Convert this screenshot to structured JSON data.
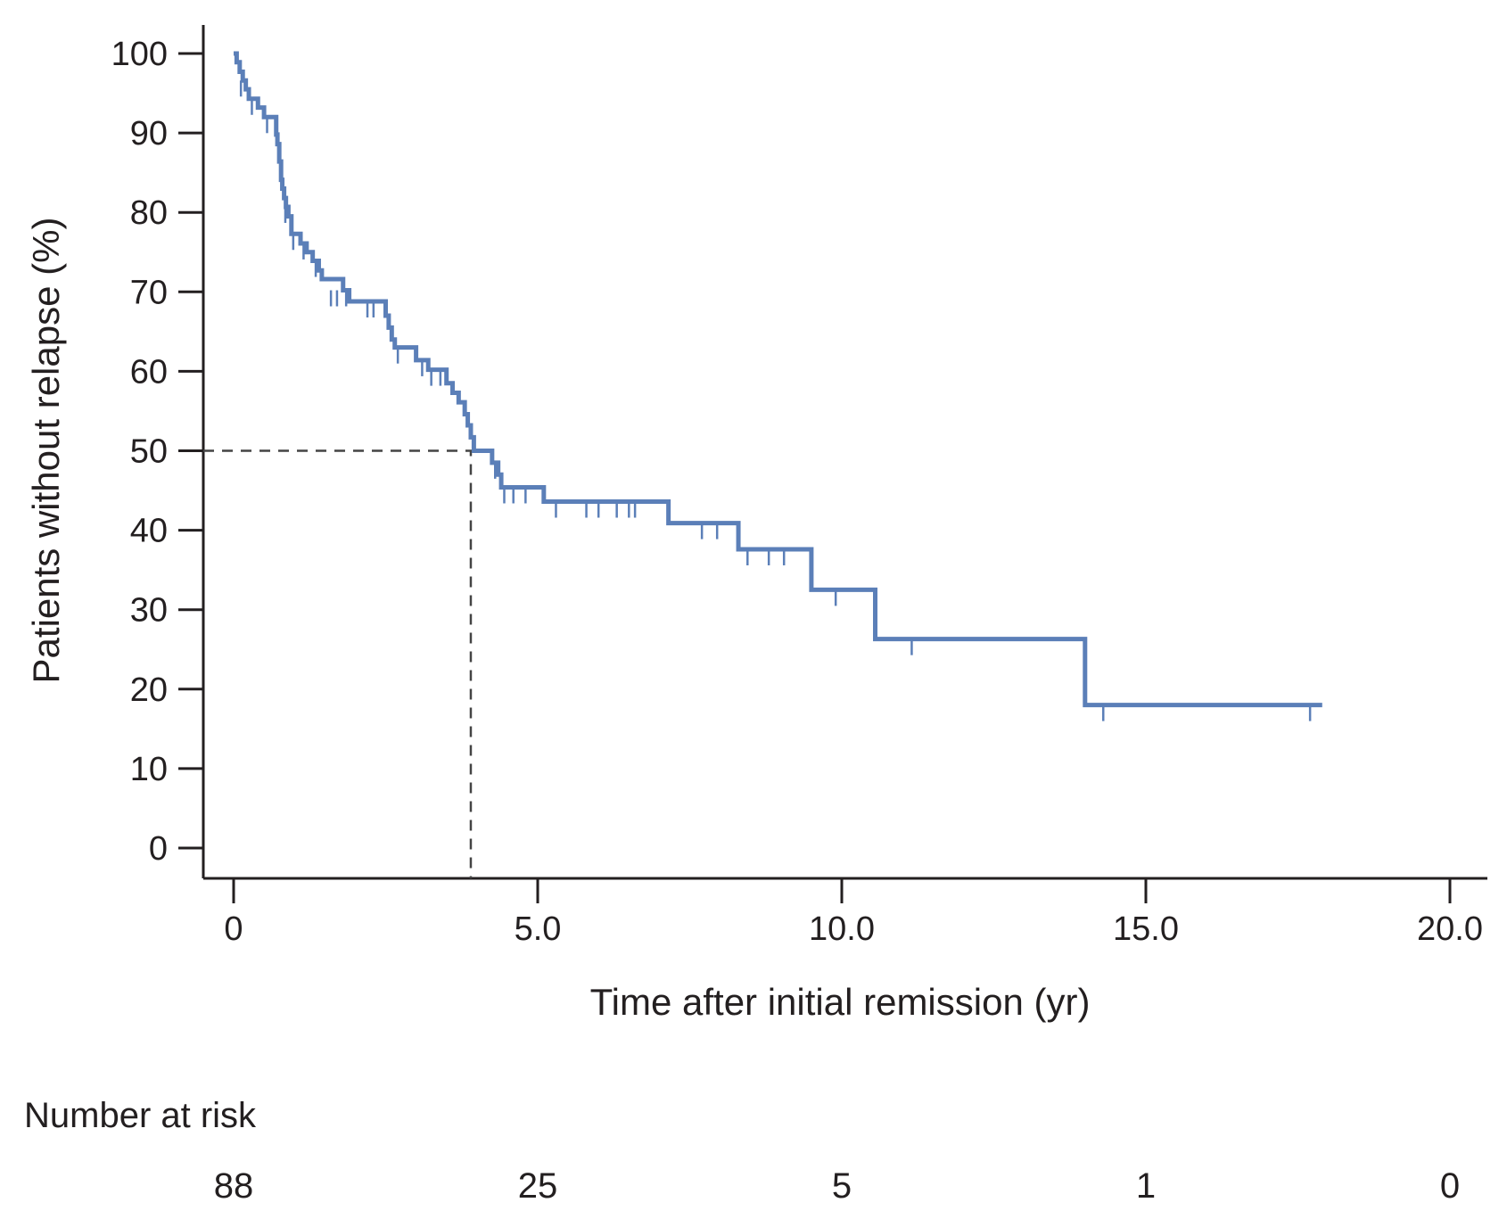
{
  "chart_data": {
    "type": "line",
    "subtype": "kaplan-meier",
    "title": "",
    "xlabel": "Time after initial remission (yr)",
    "ylabel": "Patients without relapse (%)",
    "xlim": [
      0,
      20
    ],
    "ylim": [
      0,
      100
    ],
    "x_ticks": [
      0,
      5,
      10,
      15,
      20
    ],
    "x_tick_labels": [
      "0",
      "5.0",
      "10.0",
      "15.0",
      "20.0"
    ],
    "y_ticks": [
      0,
      10,
      20,
      30,
      40,
      50,
      60,
      70,
      80,
      90,
      100
    ],
    "y_tick_labels": [
      "0",
      "10",
      "20",
      "30",
      "40",
      "50",
      "60",
      "70",
      "80",
      "90",
      "100"
    ],
    "grid": false,
    "legend": "none",
    "line_color": "#5b7fb8",
    "series": [
      {
        "steps": [
          [
            0,
            100
          ],
          [
            0.05,
            98.9
          ],
          [
            0.1,
            97.7
          ],
          [
            0.15,
            96.6
          ],
          [
            0.2,
            95.5
          ],
          [
            0.25,
            94.3
          ],
          [
            0.4,
            93.2
          ],
          [
            0.5,
            92.0
          ],
          [
            0.7,
            89.8
          ],
          [
            0.72,
            88.6
          ],
          [
            0.75,
            86.4
          ],
          [
            0.78,
            84.1
          ],
          [
            0.8,
            83.0
          ],
          [
            0.83,
            81.8
          ],
          [
            0.86,
            80.7
          ],
          [
            0.9,
            79.5
          ],
          [
            0.95,
            77.3
          ],
          [
            1.1,
            76.1
          ],
          [
            1.2,
            75.0
          ],
          [
            1.3,
            73.9
          ],
          [
            1.4,
            72.7
          ],
          [
            1.45,
            71.6
          ],
          [
            1.8,
            70.2
          ],
          [
            1.9,
            68.8
          ],
          [
            2.5,
            67.0
          ],
          [
            2.55,
            65.5
          ],
          [
            2.6,
            64.0
          ],
          [
            2.65,
            63.0
          ],
          [
            3.0,
            61.4
          ],
          [
            3.2,
            60.2
          ],
          [
            3.5,
            58.5
          ],
          [
            3.6,
            57.3
          ],
          [
            3.7,
            56.1
          ],
          [
            3.8,
            54.6
          ],
          [
            3.85,
            53.2
          ],
          [
            3.9,
            51.7
          ],
          [
            3.95,
            50.0
          ],
          [
            4.25,
            48.5
          ],
          [
            4.35,
            47.0
          ],
          [
            4.4,
            45.4
          ],
          [
            5.1,
            43.6
          ],
          [
            7.15,
            40.9
          ],
          [
            8.3,
            37.6
          ],
          [
            9.5,
            32.5
          ],
          [
            10.55,
            26.3
          ],
          [
            14.0,
            18.0
          ]
        ],
        "end_x": 17.9,
        "censored": [
          [
            0.12,
            96.6
          ],
          [
            0.3,
            94.3
          ],
          [
            0.55,
            92.0
          ],
          [
            0.85,
            80.7
          ],
          [
            0.98,
            77.3
          ],
          [
            1.15,
            76.1
          ],
          [
            1.35,
            73.9
          ],
          [
            1.6,
            70.2
          ],
          [
            1.7,
            70.2
          ],
          [
            1.85,
            70.2
          ],
          [
            2.2,
            68.8
          ],
          [
            2.3,
            68.8
          ],
          [
            2.7,
            63.0
          ],
          [
            3.1,
            61.4
          ],
          [
            3.25,
            60.2
          ],
          [
            3.4,
            60.2
          ],
          [
            4.3,
            48.5
          ],
          [
            4.45,
            45.4
          ],
          [
            4.6,
            45.4
          ],
          [
            4.8,
            45.4
          ],
          [
            5.3,
            43.6
          ],
          [
            5.8,
            43.6
          ],
          [
            6.0,
            43.6
          ],
          [
            6.3,
            43.6
          ],
          [
            6.5,
            43.6
          ],
          [
            6.6,
            43.6
          ],
          [
            7.7,
            40.9
          ],
          [
            7.95,
            40.9
          ],
          [
            8.45,
            37.6
          ],
          [
            8.8,
            37.6
          ],
          [
            9.05,
            37.6
          ],
          [
            9.9,
            32.5
          ],
          [
            11.15,
            26.3
          ],
          [
            14.3,
            18.0
          ],
          [
            17.7,
            18.0
          ]
        ]
      }
    ],
    "annotations": [
      {
        "type": "median-dashed-line",
        "x": 3.9,
        "y": 50
      }
    ],
    "risk_table": {
      "label": "Number at risk",
      "x": [
        0,
        5,
        10,
        15,
        20
      ],
      "values": [
        "88",
        "25",
        "5",
        "1",
        "0"
      ]
    }
  }
}
